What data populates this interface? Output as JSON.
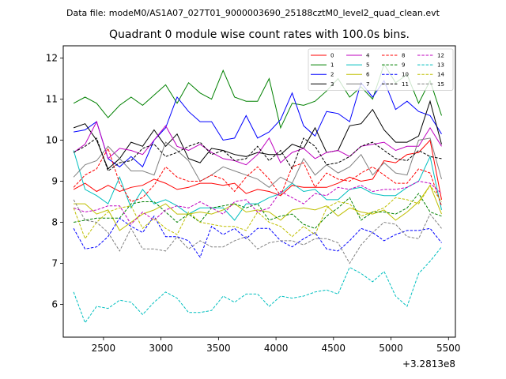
{
  "chart_data": {
    "type": "line",
    "header": "Data file: modeM0/AS1A07_027T01_9000003690_25188cztM0_level2_quad_clean.evt",
    "title": "Quadrant 0 module wise count rates with 100.0s bins.",
    "xlabel": "",
    "ylabel": "",
    "x_offset_label": "+3.2813e8",
    "xlim": [
      2150,
      5560
    ],
    "ylim": [
      5.2,
      12.3
    ],
    "xticks": [
      2500,
      3000,
      3500,
      4000,
      4500,
      5000,
      5500
    ],
    "yticks": [
      6,
      7,
      8,
      9,
      10,
      11,
      12
    ],
    "x": [
      2240,
      2340,
      2440,
      2540,
      2640,
      2740,
      2840,
      2940,
      3040,
      3140,
      3240,
      3340,
      3440,
      3540,
      3640,
      3740,
      3840,
      3940,
      4040,
      4140,
      4240,
      4340,
      4440,
      4540,
      4640,
      4740,
      4840,
      4940,
      5040,
      5140,
      5240,
      5340,
      5440
    ],
    "legend": {
      "location": "upper-right",
      "columns": 4
    },
    "series": [
      {
        "name": "0",
        "color": "#ff0000",
        "dashed": false,
        "values": [
          8.8,
          8.95,
          8.75,
          8.9,
          8.75,
          8.85,
          8.9,
          9.05,
          8.95,
          8.8,
          8.85,
          8.95,
          8.95,
          8.9,
          8.95,
          8.7,
          8.8,
          8.75,
          8.65,
          8.9,
          8.85,
          8.85,
          8.85,
          8.95,
          9.1,
          9.0,
          9.05,
          9.5,
          9.45,
          9.65,
          9.7,
          10.0,
          8.55
        ]
      },
      {
        "name": "1",
        "color": "#008000",
        "dashed": false,
        "values": [
          10.9,
          11.05,
          10.9,
          10.55,
          10.85,
          11.05,
          10.85,
          11.1,
          11.35,
          10.9,
          11.4,
          11.15,
          11.0,
          11.7,
          11.05,
          10.95,
          10.95,
          11.5,
          10.3,
          10.9,
          10.85,
          10.95,
          11.2,
          11.5,
          11.05,
          11.3,
          11.0,
          11.85,
          11.4,
          11.6,
          10.9,
          11.45,
          10.6
        ]
      },
      {
        "name": "2",
        "color": "#0000ff",
        "dashed": false,
        "values": [
          10.2,
          10.25,
          10.45,
          9.55,
          9.35,
          9.6,
          9.35,
          10.0,
          10.3,
          11.05,
          10.7,
          10.45,
          10.45,
          10.0,
          10.05,
          10.6,
          10.05,
          10.2,
          10.5,
          11.15,
          10.35,
          10.1,
          10.7,
          10.65,
          10.45,
          11.4,
          11.05,
          11.45,
          10.75,
          10.95,
          10.7,
          10.6,
          10.15
        ]
      },
      {
        "name": "3",
        "color": "#000000",
        "dashed": false,
        "values": [
          10.3,
          10.4,
          10.0,
          9.3,
          9.55,
          9.95,
          9.85,
          10.25,
          9.85,
          10.15,
          9.55,
          9.45,
          9.8,
          9.75,
          9.65,
          9.6,
          9.7,
          9.65,
          9.65,
          9.9,
          9.8,
          10.3,
          9.7,
          9.75,
          10.35,
          10.4,
          10.75,
          10.25,
          9.95,
          9.95,
          10.1,
          10.95,
          9.9
        ]
      },
      {
        "name": "4",
        "color": "#bf00bf",
        "dashed": false,
        "values": [
          9.7,
          9.9,
          10.45,
          9.55,
          9.8,
          9.75,
          9.65,
          10.0,
          10.35,
          9.85,
          9.75,
          9.9,
          9.7,
          9.55,
          9.5,
          9.4,
          9.65,
          10.05,
          9.45,
          9.7,
          9.8,
          9.55,
          9.7,
          9.75,
          9.6,
          9.85,
          9.9,
          9.95,
          9.75,
          9.85,
          9.85,
          10.3,
          9.85
        ]
      },
      {
        "name": "5",
        "color": "#00bfbf",
        "dashed": false,
        "values": [
          9.75,
          8.8,
          8.65,
          8.45,
          9.1,
          8.35,
          8.8,
          8.45,
          8.55,
          8.4,
          8.2,
          8.35,
          8.35,
          8.35,
          8.05,
          8.45,
          8.45,
          8.6,
          8.7,
          8.95,
          8.75,
          8.8,
          8.55,
          8.55,
          8.8,
          8.85,
          8.7,
          8.65,
          8.65,
          8.85,
          9.0,
          9.6,
          8.3
        ]
      },
      {
        "name": "6",
        "color": "#bfbf00",
        "dashed": false,
        "values": [
          8.45,
          8.45,
          8.2,
          8.3,
          7.8,
          8.0,
          8.2,
          8.3,
          8.45,
          8.2,
          8.2,
          8.25,
          8.2,
          8.3,
          8.45,
          8.25,
          8.3,
          8.25,
          8.05,
          8.3,
          8.35,
          8.3,
          8.4,
          8.15,
          8.35,
          8.25,
          8.2,
          8.3,
          8.05,
          8.25,
          8.5,
          8.9,
          8.2
        ]
      },
      {
        "name": "7",
        "color": "#808080",
        "dashed": false,
        "values": [
          9.1,
          9.4,
          9.5,
          9.85,
          9.55,
          9.25,
          9.25,
          9.15,
          9.95,
          9.75,
          9.5,
          9.0,
          9.15,
          9.35,
          9.25,
          9.15,
          9.05,
          8.85,
          9.1,
          8.95,
          9.55,
          9.15,
          9.4,
          9.2,
          9.35,
          9.65,
          9.15,
          9.45,
          9.2,
          9.15,
          10.0,
          10.05,
          9.05
        ]
      },
      {
        "name": "8",
        "color": "#ff0000",
        "dashed": true,
        "values": [
          8.85,
          9.15,
          9.3,
          9.8,
          8.95,
          8.5,
          8.6,
          8.9,
          9.35,
          9.1,
          9.0,
          9.0,
          9.15,
          9.05,
          8.75,
          9.1,
          9.35,
          9.05,
          8.65,
          9.35,
          9.45,
          8.85,
          9.2,
          9.05,
          9.0,
          9.2,
          9.35,
          9.15,
          8.95,
          8.95,
          9.3,
          9.2,
          8.4
        ]
      },
      {
        "name": "9",
        "color": "#008000",
        "dashed": true,
        "values": [
          8.0,
          8.05,
          8.1,
          8.1,
          8.1,
          8.45,
          8.5,
          8.5,
          8.25,
          8.0,
          8.2,
          8.0,
          8.35,
          8.4,
          8.45,
          8.35,
          8.45,
          8.05,
          8.15,
          8.2,
          7.95,
          7.85,
          8.15,
          8.35,
          8.6,
          8.05,
          8.25,
          8.25,
          8.2,
          8.35,
          8.7,
          8.25,
          8.15
        ]
      },
      {
        "name": "10",
        "color": "#0000ff",
        "dashed": true,
        "values": [
          7.85,
          7.35,
          7.4,
          7.65,
          8.1,
          7.9,
          7.75,
          8.15,
          7.65,
          7.65,
          7.55,
          7.15,
          7.9,
          7.7,
          7.85,
          7.6,
          7.85,
          7.85,
          7.55,
          7.4,
          7.6,
          7.75,
          7.35,
          7.3,
          7.55,
          7.85,
          7.75,
          7.55,
          7.7,
          7.8,
          7.8,
          7.85,
          7.5
        ]
      },
      {
        "name": "11",
        "color": "#000000",
        "dashed": true,
        "values": [
          9.7,
          9.85,
          10.05,
          9.25,
          9.45,
          9.5,
          9.8,
          9.9,
          9.6,
          9.7,
          9.85,
          9.95,
          9.65,
          9.75,
          9.5,
          9.55,
          9.85,
          9.5,
          9.75,
          9.3,
          10.05,
          9.85,
          9.4,
          9.45,
          9.6,
          9.85,
          9.95,
          9.75,
          9.55,
          9.5,
          9.75,
          9.6,
          9.55
        ]
      },
      {
        "name": "12",
        "color": "#bf00bf",
        "dashed": true,
        "values": [
          8.35,
          8.25,
          8.3,
          8.4,
          8.4,
          7.95,
          8.25,
          8.05,
          8.3,
          8.4,
          8.35,
          8.5,
          8.35,
          8.2,
          8.5,
          8.55,
          8.25,
          8.35,
          8.75,
          8.6,
          8.45,
          8.7,
          8.65,
          8.85,
          8.8,
          8.9,
          8.75,
          8.8,
          8.8,
          8.85,
          9.0,
          8.95,
          8.7
        ]
      },
      {
        "name": "13",
        "color": "#00bfbf",
        "dashed": true,
        "values": [
          6.3,
          5.55,
          5.95,
          5.9,
          6.1,
          6.05,
          5.75,
          6.05,
          6.3,
          6.15,
          5.8,
          5.8,
          5.85,
          6.2,
          6.05,
          6.25,
          6.25,
          5.95,
          6.2,
          6.15,
          6.2,
          6.3,
          6.35,
          6.25,
          6.9,
          6.75,
          6.55,
          6.8,
          6.2,
          5.95,
          6.75,
          7.05,
          7.4
        ]
      },
      {
        "name": "14",
        "color": "#bfbf00",
        "dashed": true,
        "values": [
          8.35,
          7.6,
          8.0,
          8.25,
          8.35,
          8.4,
          7.85,
          8.1,
          7.85,
          7.7,
          8.25,
          8.0,
          7.95,
          7.9,
          7.9,
          7.8,
          8.25,
          8.0,
          7.9,
          7.65,
          7.9,
          7.7,
          8.35,
          8.5,
          8.45,
          8.15,
          8.25,
          8.35,
          8.6,
          8.55,
          8.45,
          8.9,
          8.5
        ]
      },
      {
        "name": "15",
        "color": "#808080",
        "dashed": true,
        "values": [
          8.55,
          8.05,
          8.0,
          7.75,
          7.3,
          7.85,
          7.35,
          7.35,
          7.3,
          7.65,
          7.35,
          7.55,
          7.4,
          7.4,
          7.55,
          7.65,
          7.35,
          7.5,
          7.55,
          7.55,
          7.45,
          7.6,
          7.6,
          7.5,
          7.0,
          7.45,
          7.75,
          8.0,
          7.95,
          7.65,
          7.6,
          8.2,
          7.85
        ]
      }
    ]
  }
}
